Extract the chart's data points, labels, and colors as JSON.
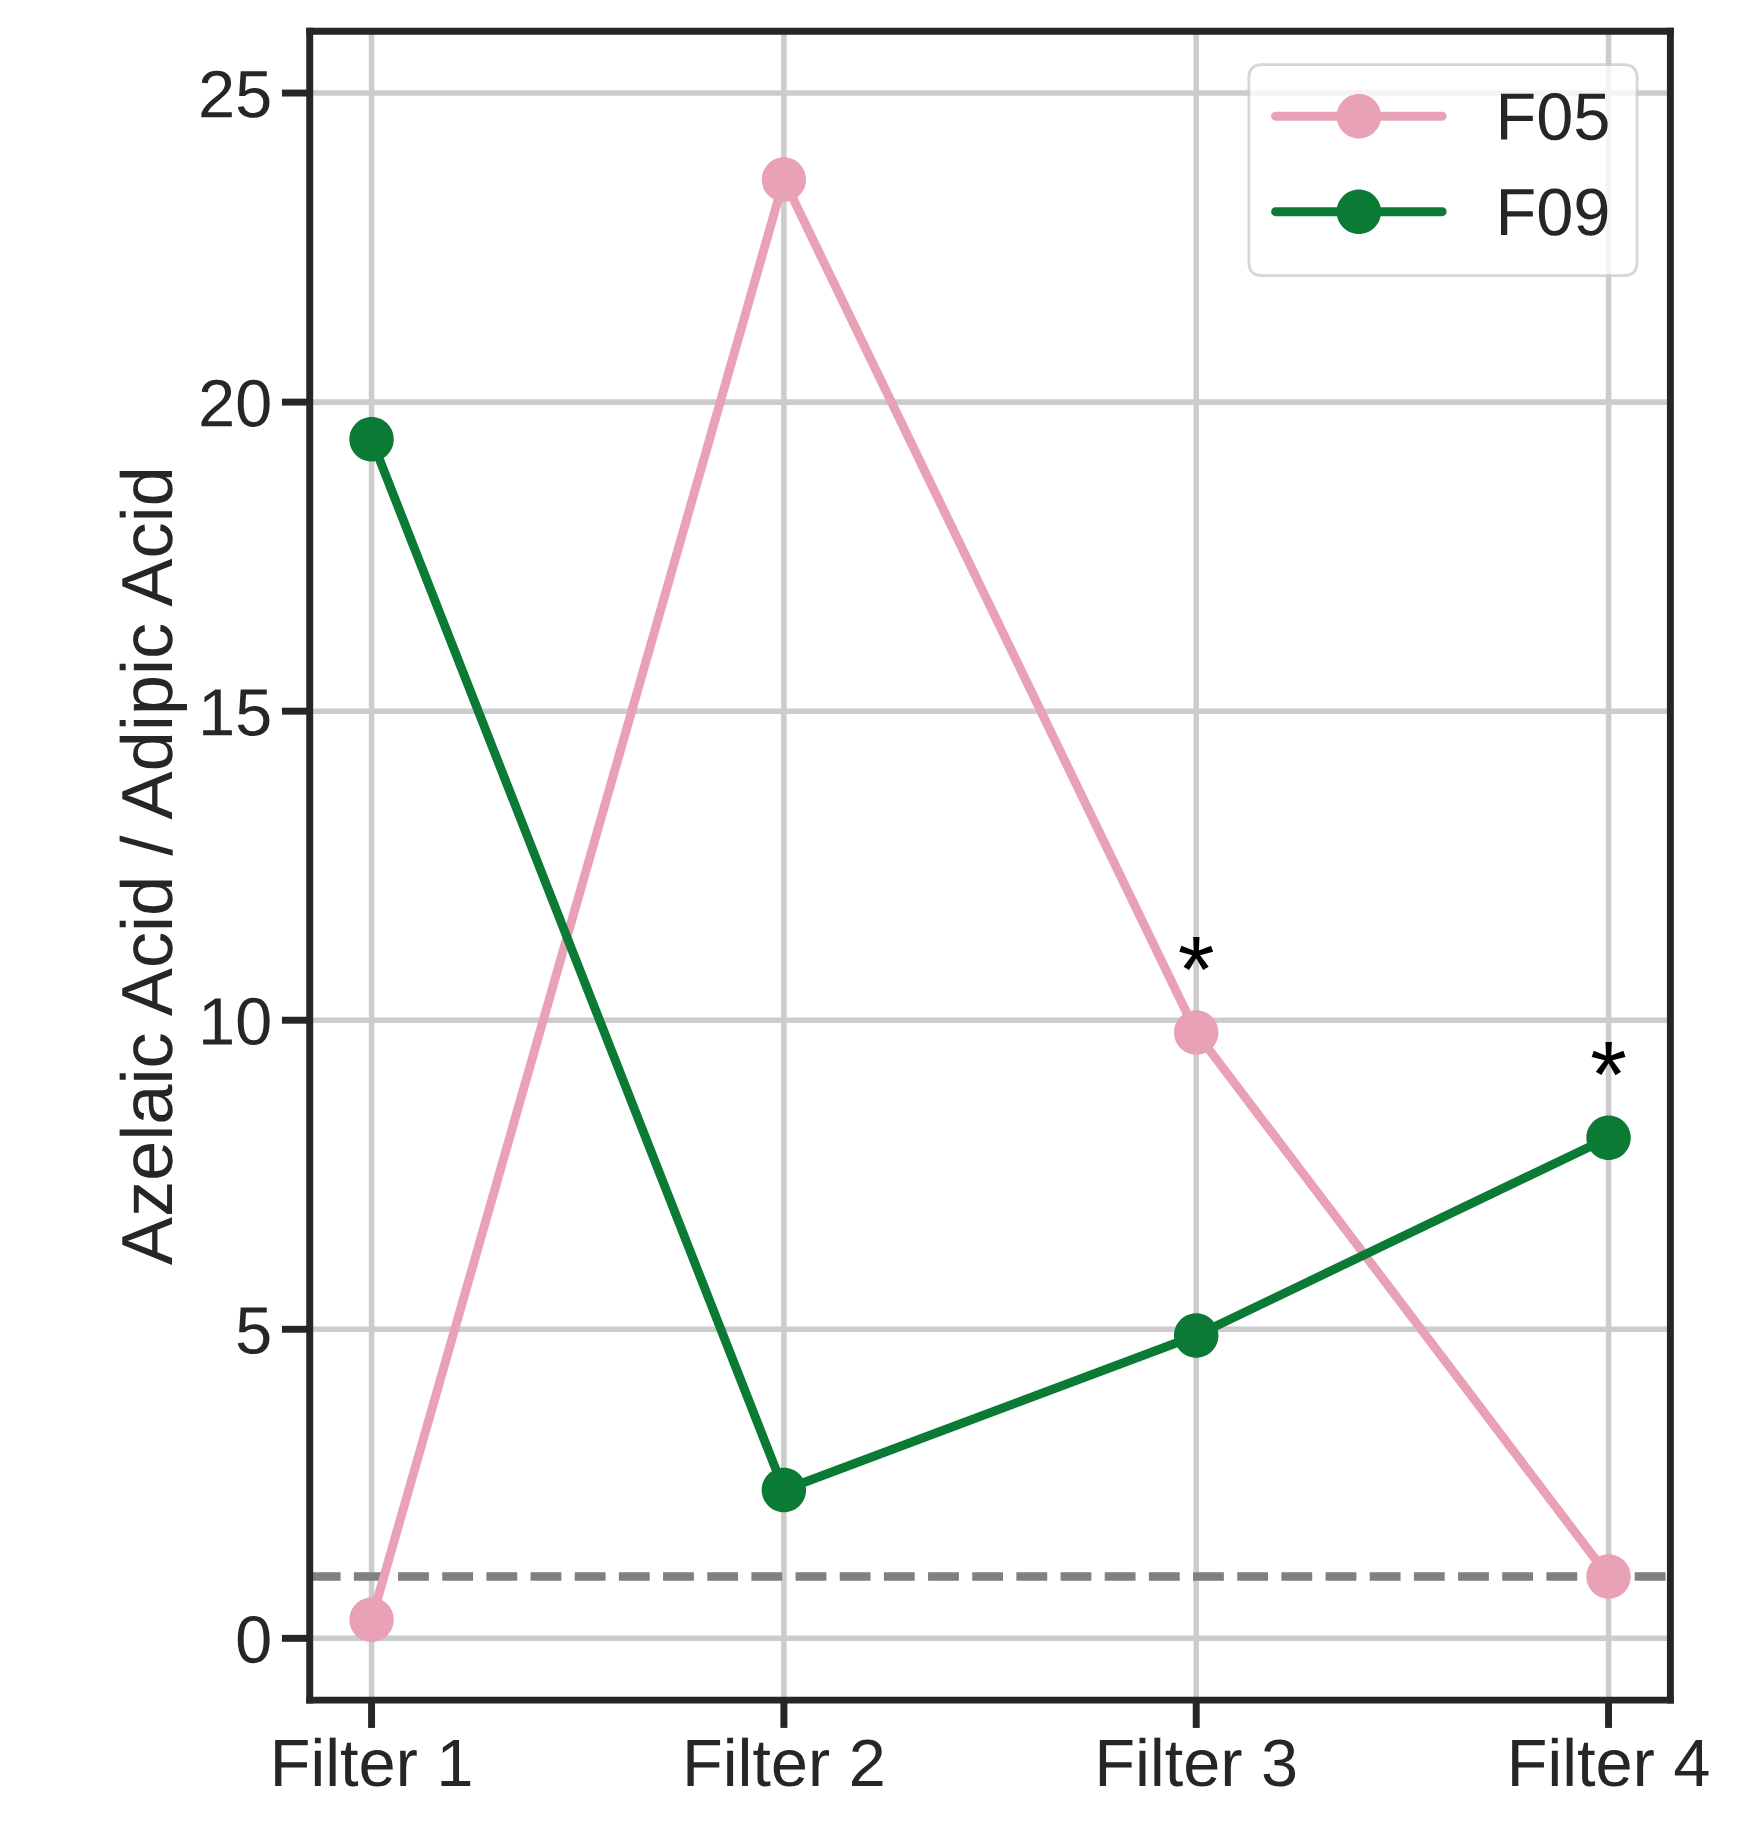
{
  "chart_data": {
    "type": "line",
    "ylabel": "Azelaic Acid / Adipic Acid",
    "categories": [
      "Filter 1",
      "Filter 2",
      "Filter 3",
      "Filter 4"
    ],
    "series": [
      {
        "name": "F05",
        "color": "#e8a1b5",
        "values": [
          0.3,
          23.6,
          9.8,
          1.0
        ]
      },
      {
        "name": "F09",
        "color": "#0b7a35",
        "values": [
          19.4,
          2.4,
          4.9,
          8.1
        ]
      }
    ],
    "ylim": [
      -1,
      26
    ],
    "yticks": [
      0,
      5,
      10,
      15,
      20,
      25
    ],
    "ref_lines": [
      {
        "axis": "y",
        "value": 1,
        "color": "#808080",
        "line_style": "dashed"
      }
    ],
    "annotations": [
      "*",
      "*"
    ],
    "grid": true,
    "legend": "top right",
    "marker": "circle",
    "line_style": "solid"
  }
}
